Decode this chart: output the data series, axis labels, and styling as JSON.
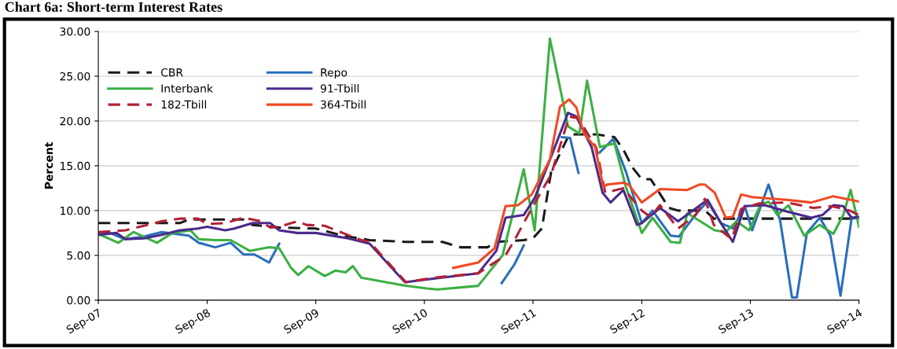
{
  "chart_data": {
    "type": "line",
    "title": "Chart 6a: Short-term Interest Rates",
    "ylabel": "Percent",
    "xlim": [
      "2007-09-01",
      "2014-09-01"
    ],
    "xticks": [
      {
        "value": "2007-09-01",
        "label": "Sep-07"
      },
      {
        "value": "2008-09-01",
        "label": "Sep-08"
      },
      {
        "value": "2009-09-01",
        "label": "Sep-09"
      },
      {
        "value": "2010-09-01",
        "label": "Sep-10"
      },
      {
        "value": "2011-09-01",
        "label": "Sep-11"
      },
      {
        "value": "2012-09-01",
        "label": "Sep-12"
      },
      {
        "value": "2013-09-01",
        "label": "Sep-13"
      },
      {
        "value": "2014-09-01",
        "label": "Sep-14"
      }
    ],
    "ylim": [
      0,
      30
    ],
    "yticks": [
      {
        "value": 0,
        "label": "0.00"
      },
      {
        "value": 5,
        "label": "5.00"
      },
      {
        "value": 10,
        "label": "10.00"
      },
      {
        "value": 15,
        "label": "15.00"
      },
      {
        "value": 20,
        "label": "20.00"
      },
      {
        "value": 25,
        "label": "25.00"
      },
      {
        "value": 30,
        "label": "30.00"
      }
    ],
    "grid": "y",
    "legend": "top left",
    "marker": "none",
    "series": [
      {
        "name": "CBR",
        "color": "#1a1a1a",
        "line_style": "dashed",
        "x": [
          "2007-09-01",
          "2008-06-01",
          "2008-07-01",
          "2009-01-01",
          "2009-02-01",
          "2009-05-01",
          "2009-09-01",
          "2009-12-01",
          "2010-03-01",
          "2010-07-01",
          "2010-11-01",
          "2011-01-01",
          "2011-04-01",
          "2011-05-01",
          "2011-08-01",
          "2011-09-01",
          "2011-10-01",
          "2011-11-01",
          "2012-01-01",
          "2012-04-01",
          "2012-06-01",
          "2012-07-01",
          "2012-08-01",
          "2012-09-01",
          "2012-10-01",
          "2012-12-01",
          "2013-01-01",
          "2013-04-01",
          "2013-05-01",
          "2014-09-01"
        ],
        "values": [
          8.6,
          8.6,
          9.0,
          9.0,
          8.4,
          8.1,
          8.0,
          7.2,
          6.7,
          6.5,
          6.5,
          5.9,
          5.9,
          6.5,
          6.7,
          6.9,
          8.0,
          14.3,
          18.5,
          18.5,
          18.2,
          16.8,
          14.8,
          13.5,
          13.5,
          10.3,
          10.0,
          10.0,
          9.1,
          9.1
        ]
      },
      {
        "name": "Repo",
        "color": "#2a6ebb",
        "line_style": "solid",
        "x": [
          "2007-09-01",
          "2007-10-10",
          "2007-12-01",
          "2008-02-01",
          "2008-04-01",
          "2008-07-01",
          "2008-08-04",
          "2008-09-28",
          "2008-11-19",
          "2009-01-01",
          "2009-02-07",
          "2009-03-28",
          "2009-05-01",
          "2009-06-01",
          "2011-05-19",
          "2011-07-01",
          "2011-08-01",
          "2011-09-01",
          "2011-12-07",
          "2012-01-04",
          "2012-02-01",
          "2012-03-01",
          "2012-04-13",
          "2012-05-28",
          "2012-07-10",
          "2012-09-01",
          "2012-10-07",
          "2012-12-07",
          "2013-01-04",
          "2013-03-04",
          "2013-04-10",
          "2013-05-25",
          "2013-07-04",
          "2013-08-13",
          "2013-09-07",
          "2013-11-01",
          "2013-12-10",
          "2014-01-19",
          "2014-02-04",
          "2014-03-10",
          "2014-04-22",
          "2014-05-28",
          "2014-07-01",
          "2014-08-07",
          "2014-09-01"
        ],
        "values": [
          7.3,
          7.5,
          6.8,
          7.1,
          7.6,
          7.2,
          6.4,
          5.9,
          6.4,
          5.1,
          5.1,
          4.2,
          6.3,
          null,
          1.9,
          4.0,
          6.1,
          null,
          18.2,
          18.1,
          14.2,
          null,
          16.5,
          18.0,
          14.3,
          8.6,
          10.0,
          7.2,
          7.1,
          9.7,
          11.0,
          8.6,
          8.0,
          10.5,
          7.8,
          12.9,
          8.9,
          0.3,
          0.3,
          7.5,
          9.2,
          7.2,
          0.5,
          9.1,
          9.2
        ]
      },
      {
        "name": "Interbank",
        "color": "#3cb043",
        "line_style": "solid",
        "x": [
          "2007-09-01",
          "2007-11-07",
          "2007-12-28",
          "2008-03-16",
          "2008-05-07",
          "2008-07-07",
          "2008-08-04",
          "2008-09-28",
          "2008-11-19",
          "2009-01-22",
          "2009-03-28",
          "2009-05-01",
          "2009-06-10",
          "2009-07-04",
          "2009-08-07",
          "2009-10-01",
          "2009-11-07",
          "2009-12-10",
          "2010-01-04",
          "2010-02-01",
          "2010-07-01",
          "2010-09-10",
          "2010-10-16",
          "2011-03-01",
          "2011-03-13",
          "2011-05-22",
          "2011-08-01",
          "2011-09-07",
          "2011-10-28",
          "2011-12-28",
          "2012-02-04",
          "2012-03-01",
          "2012-04-13",
          "2012-06-01",
          "2012-07-10",
          "2012-09-01",
          "2012-10-07",
          "2012-11-01",
          "2012-12-07",
          "2013-01-07",
          "2013-02-01",
          "2013-05-04",
          "2013-06-10",
          "2013-07-16",
          "2013-08-28",
          "2013-10-04",
          "2013-11-01",
          "2013-12-01",
          "2014-01-07",
          "2014-03-01",
          "2014-04-22",
          "2014-06-07",
          "2014-07-10",
          "2014-08-04",
          "2014-09-01"
        ],
        "values": [
          7.4,
          6.4,
          7.6,
          6.4,
          7.5,
          7.8,
          6.8,
          6.7,
          6.7,
          5.5,
          5.9,
          5.8,
          3.6,
          2.8,
          3.8,
          2.7,
          3.3,
          3.1,
          3.8,
          2.5,
          1.6,
          1.3,
          1.2,
          1.6,
          2.1,
          5.0,
          14.6,
          7.8,
          29.2,
          19.4,
          18.6,
          24.5,
          17.1,
          17.5,
          12.6,
          7.5,
          9.2,
          8.1,
          6.5,
          6.4,
          9.7,
          7.8,
          7.6,
          8.8,
          7.8,
          10.6,
          11.0,
          9.5,
          10.6,
          7.2,
          8.4,
          7.4,
          9.5,
          12.3,
          8.2
        ]
      },
      {
        "name": "91-Tbill",
        "color": "#4b2a8a",
        "line_style": "solid",
        "x": [
          "2007-09-01",
          "2007-11-01",
          "2007-12-01",
          "2008-02-01",
          "2008-04-01",
          "2008-06-01",
          "2008-08-01",
          "2008-09-01",
          "2008-11-01",
          "2008-12-01",
          "2009-02-01",
          "2009-04-01",
          "2009-05-01",
          "2009-07-01",
          "2009-09-01",
          "2009-12-19",
          "2010-03-01",
          "2010-06-28",
          "2010-10-01",
          "2011-03-01",
          "2011-05-01",
          "2011-06-01",
          "2011-08-01",
          "2011-09-07",
          "2011-11-01",
          "2011-12-28",
          "2012-01-25",
          "2012-03-16",
          "2012-04-22",
          "2012-05-19",
          "2012-07-01",
          "2012-08-16",
          "2012-09-01",
          "2012-11-01",
          "2013-01-01",
          "2013-04-10",
          "2013-05-25",
          "2013-07-04",
          "2013-08-13",
          "2013-10-19",
          "2014-01-01",
          "2014-03-25",
          "2014-05-01",
          "2014-06-07",
          "2014-07-10",
          "2014-08-07",
          "2014-09-01"
        ],
        "values": [
          7.3,
          7.5,
          6.8,
          6.9,
          7.3,
          7.8,
          8.0,
          8.2,
          7.8,
          8.0,
          8.6,
          8.6,
          7.8,
          7.5,
          7.5,
          6.9,
          6.3,
          2.0,
          2.4,
          3.0,
          5.5,
          9.2,
          9.5,
          11.4,
          16.0,
          20.9,
          20.5,
          17.1,
          12.0,
          10.9,
          12.3,
          8.4,
          8.6,
          10.3,
          8.8,
          11.2,
          8.6,
          6.5,
          10.5,
          10.6,
          9.9,
          9.2,
          9.5,
          10.6,
          10.5,
          9.2,
          9.3
        ]
      },
      {
        "name": "182-Tbill",
        "color": "#b22234",
        "line_style": "dashed",
        "x": [
          "2007-09-01",
          "2007-12-01",
          "2008-02-01",
          "2008-04-01",
          "2008-06-01",
          "2008-08-01",
          "2008-09-01",
          "2008-11-01",
          "2009-01-01",
          "2009-03-01",
          "2009-04-01",
          "2009-05-01",
          "2009-07-01",
          "2009-08-01",
          "2009-10-01",
          "2009-12-01",
          "2010-02-01",
          "2010-03-01",
          "2010-07-01",
          "2010-10-01",
          "2011-03-01",
          "2011-06-01",
          "2011-07-01",
          "2011-09-01",
          "2011-11-01",
          "2012-01-01",
          "2012-02-01",
          "2012-04-01",
          "2012-05-01",
          "2012-07-01",
          "2012-09-01",
          "2012-10-01",
          "2012-11-01",
          "2013-01-01",
          "2013-03-01",
          "2013-04-01",
          "2013-05-01",
          "2013-07-01",
          "2013-08-01",
          "2013-10-01",
          "2014-01-01",
          "2014-04-01",
          "2014-06-01",
          "2014-08-01",
          "2014-09-01"
        ],
        "values": [
          7.6,
          7.8,
          8.3,
          8.8,
          9.1,
          9.1,
          8.5,
          8.6,
          9.2,
          8.8,
          8.1,
          8.2,
          8.8,
          8.4,
          8.3,
          7.5,
          6.7,
          6.5,
          2.0,
          2.5,
          3.0,
          5.0,
          6.7,
          10.5,
          14.0,
          20.5,
          20.3,
          17.0,
          12.0,
          12.5,
          10.0,
          9.3,
          10.6,
          8.0,
          9.5,
          11.3,
          8.4,
          6.8,
          10.2,
          10.8,
          10.9,
          10.3,
          10.5,
          10.0,
          9.5
        ]
      },
      {
        "name": "364-Tbill",
        "color": "#f04a23",
        "line_style": "solid",
        "x": [
          "2010-12-07",
          "2011-03-01",
          "2011-04-25",
          "2011-06-01",
          "2011-07-13",
          "2011-08-28",
          "2011-10-28",
          "2011-12-01",
          "2012-01-01",
          "2012-01-25",
          "2012-02-19",
          "2012-03-28",
          "2012-04-25",
          "2012-05-07",
          "2012-07-01",
          "2012-07-19",
          "2012-09-01",
          "2012-11-01",
          "2013-02-01",
          "2013-03-13",
          "2013-04-01",
          "2013-05-04",
          "2013-06-10",
          "2013-07-04",
          "2013-08-01",
          "2013-09-07",
          "2014-01-01",
          "2014-03-25",
          "2014-06-07",
          "2014-09-01"
        ],
        "values": [
          3.6,
          4.2,
          5.8,
          10.5,
          10.6,
          11.8,
          15.7,
          21.6,
          22.4,
          21.5,
          18.6,
          17.1,
          12.6,
          12.9,
          13.1,
          12.9,
          10.9,
          12.4,
          12.3,
          12.9,
          12.9,
          12.0,
          9.2,
          9.3,
          11.8,
          11.5,
          11.2,
          10.9,
          11.6,
          11.0
        ]
      }
    ]
  }
}
